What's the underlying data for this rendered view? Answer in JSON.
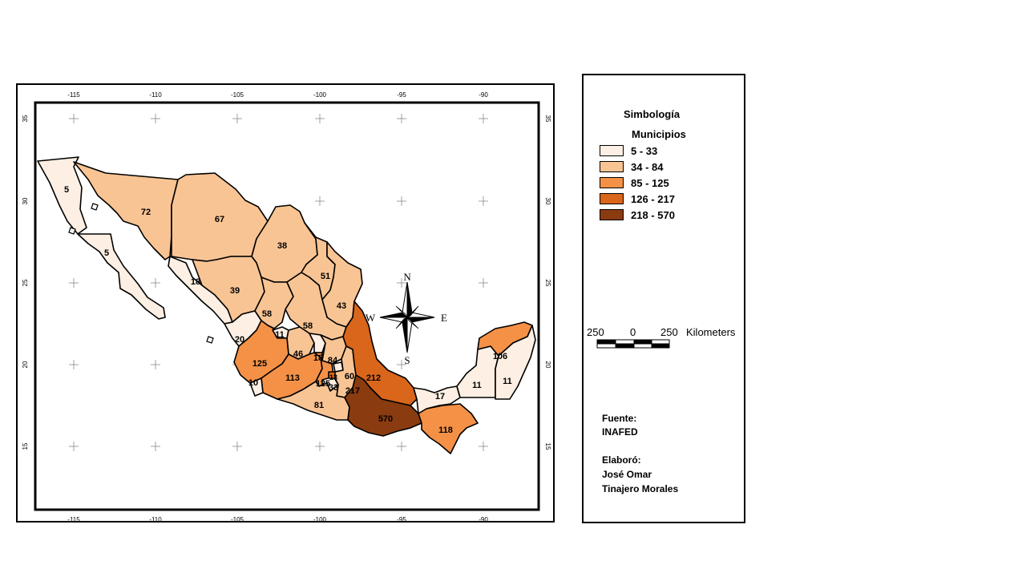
{
  "map": {
    "lon_ticks": [
      "-115",
      "-110",
      "-105",
      "-100",
      "-95",
      "-90"
    ],
    "lat_ticks": [
      "35",
      "30",
      "25",
      "20",
      "15"
    ],
    "north_arrow": {
      "n": "N",
      "s": "S",
      "e": "E",
      "w": "W"
    },
    "state_values": [
      {
        "value": "5",
        "color": "#fdefe3"
      },
      {
        "value": "5",
        "color": "#fdefe3"
      },
      {
        "value": "72",
        "color": "#f9c494"
      },
      {
        "value": "67",
        "color": "#f9c494"
      },
      {
        "value": "38",
        "color": "#f9c494"
      },
      {
        "value": "18",
        "color": "#fdefe3"
      },
      {
        "value": "39",
        "color": "#f9c494"
      },
      {
        "value": "51",
        "color": "#f9c494"
      },
      {
        "value": "43",
        "color": "#f9c494"
      },
      {
        "value": "58",
        "color": "#f9c494"
      },
      {
        "value": "58",
        "color": "#f9c494"
      },
      {
        "value": "11",
        "color": "#fdefe3"
      },
      {
        "value": "20",
        "color": "#fdefe3"
      },
      {
        "value": "46",
        "color": "#f9c494"
      },
      {
        "value": "18",
        "color": "#fdefe3"
      },
      {
        "value": "84",
        "color": "#f9c494"
      },
      {
        "value": "125",
        "color": "#f49147"
      },
      {
        "value": "113",
        "color": "#f49147"
      },
      {
        "value": "10",
        "color": "#fdefe3"
      },
      {
        "value": "125",
        "color": "#f49147"
      },
      {
        "value": "13",
        "color": "#fdefe3"
      },
      {
        "value": "33",
        "color": "#fdefe3"
      },
      {
        "value": "60",
        "color": "#f9c494"
      },
      {
        "value": "217",
        "color": "#d9661b"
      },
      {
        "value": "212",
        "color": "#d9661b"
      },
      {
        "value": "81",
        "color": "#f9c494"
      },
      {
        "value": "570",
        "color": "#8a3c10"
      },
      {
        "value": "118",
        "color": "#f49147"
      },
      {
        "value": "17",
        "color": "#fdefe3"
      },
      {
        "value": "11",
        "color": "#fdefe3"
      },
      {
        "value": "106",
        "color": "#f49147"
      },
      {
        "value": "11",
        "color": "#fdefe3"
      }
    ]
  },
  "legend": {
    "title": "Simbología",
    "subtitle": "Municipios",
    "classes": [
      {
        "label": "5 - 33",
        "color": "#fdefe3"
      },
      {
        "label": "34 - 84",
        "color": "#f9c494"
      },
      {
        "label": "85 - 125",
        "color": "#f49147"
      },
      {
        "label": "126 - 217",
        "color": "#d9661b"
      },
      {
        "label": "218 - 570",
        "color": "#8a3c10"
      }
    ],
    "scale": {
      "left": "250",
      "mid": "0",
      "right": "250",
      "unit": "Kilometers"
    },
    "source_label": "Fuente:",
    "source_value": "INAFED",
    "author_label": "Elaboró:",
    "author_line1": "José Omar",
    "author_line2": "Tinajero Morales"
  }
}
